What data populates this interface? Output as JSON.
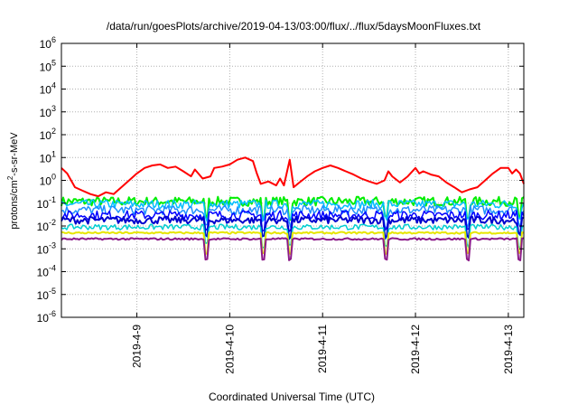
{
  "chart_data": {
    "type": "line",
    "title": "/data/run/goesPlots/archive/2019-04-13/03:00/flux/../flux/5daysMoonFluxes.txt",
    "xlabel": "Coordinated Universal Time (UTC)",
    "ylabel": {
      "prefix": "protons/cm",
      "sup": "2",
      "suffix": "-s-sr-MeV"
    },
    "yscale": "log",
    "ylim": [
      1e-06,
      1000000.0
    ],
    "y_ticks": [
      {
        "base": "10",
        "exp": "-6",
        "value": 1e-06
      },
      {
        "base": "10",
        "exp": "-5",
        "value": 1e-05
      },
      {
        "base": "10",
        "exp": "-4",
        "value": 0.0001
      },
      {
        "base": "10",
        "exp": "-3",
        "value": 0.001
      },
      {
        "base": "10",
        "exp": "-2",
        "value": 0.01
      },
      {
        "base": "10",
        "exp": "-1",
        "value": 0.1
      },
      {
        "base": "10",
        "exp": "0",
        "value": 1
      },
      {
        "base": "10",
        "exp": "1",
        "value": 10
      },
      {
        "base": "10",
        "exp": "2",
        "value": 100
      },
      {
        "base": "10",
        "exp": "3",
        "value": 1000
      },
      {
        "base": "10",
        "exp": "4",
        "value": 10000
      },
      {
        "base": "10",
        "exp": "5",
        "value": 100000
      },
      {
        "base": "10",
        "exp": "6",
        "value": 1000000
      }
    ],
    "xlim": [
      "2019-04-08 04:30",
      "2019-04-13 04:00"
    ],
    "x_ticks": [
      "2019-4-9",
      "2019-4-10",
      "2019-4-11",
      "2019-4-12",
      "2019-4-13"
    ],
    "grid": true,
    "series": [
      {
        "color": "#ff0000",
        "width": 2,
        "points": [
          [
            "2019-04-08 04:30",
            3.5
          ],
          [
            "2019-04-08 06:00",
            2.0
          ],
          [
            "2019-04-08 08:00",
            0.5
          ],
          [
            "2019-04-08 10:00",
            0.35
          ],
          [
            "2019-04-08 12:00",
            0.25
          ],
          [
            "2019-04-08 14:00",
            0.2
          ],
          [
            "2019-04-08 16:00",
            0.3
          ],
          [
            "2019-04-08 18:00",
            0.25
          ],
          [
            "2019-04-08 20:00",
            0.5
          ],
          [
            "2019-04-08 22:00",
            1.0
          ],
          [
            "2019-04-09 00:00",
            2.0
          ],
          [
            "2019-04-09 02:00",
            3.5
          ],
          [
            "2019-04-09 04:00",
            4.5
          ],
          [
            "2019-04-09 06:00",
            5.0
          ],
          [
            "2019-04-09 08:00",
            3.5
          ],
          [
            "2019-04-09 10:00",
            4.0
          ],
          [
            "2019-04-09 12:00",
            2.5
          ],
          [
            "2019-04-09 14:00",
            1.5
          ],
          [
            "2019-04-09 15:00",
            3.0
          ],
          [
            "2019-04-09 17:00",
            1.2
          ],
          [
            "2019-04-09 19:00",
            1.5
          ],
          [
            "2019-04-09 20:00",
            3.5
          ],
          [
            "2019-04-09 22:00",
            4.0
          ],
          [
            "2019-04-10 00:00",
            5.0
          ],
          [
            "2019-04-10 02:00",
            8.0
          ],
          [
            "2019-04-10 04:00",
            10.0
          ],
          [
            "2019-04-10 06:00",
            7.0
          ],
          [
            "2019-04-10 07:00",
            2.0
          ],
          [
            "2019-04-10 08:00",
            0.7
          ],
          [
            "2019-04-10 10:00",
            0.9
          ],
          [
            "2019-04-10 12:00",
            0.6
          ],
          [
            "2019-04-10 13:00",
            1.2
          ],
          [
            "2019-04-10 14:00",
            0.6
          ],
          [
            "2019-04-10 15:30",
            8.0
          ],
          [
            "2019-04-10 16:30",
            0.5
          ],
          [
            "2019-04-10 18:00",
            0.8
          ],
          [
            "2019-04-10 20:00",
            1.5
          ],
          [
            "2019-04-10 22:00",
            2.5
          ],
          [
            "2019-04-11 00:00",
            3.5
          ],
          [
            "2019-04-11 02:00",
            4.5
          ],
          [
            "2019-04-11 04:00",
            3.5
          ],
          [
            "2019-04-11 06:00",
            2.5
          ],
          [
            "2019-04-11 08:00",
            1.8
          ],
          [
            "2019-04-11 10:00",
            1.2
          ],
          [
            "2019-04-11 12:00",
            0.9
          ],
          [
            "2019-04-11 14:00",
            0.7
          ],
          [
            "2019-04-11 16:00",
            1.0
          ],
          [
            "2019-04-11 17:00",
            2.5
          ],
          [
            "2019-04-11 18:00",
            1.5
          ],
          [
            "2019-04-11 20:00",
            0.8
          ],
          [
            "2019-04-11 22:00",
            1.5
          ],
          [
            "2019-04-12 00:00",
            3.5
          ],
          [
            "2019-04-12 01:00",
            2.0
          ],
          [
            "2019-04-12 02:00",
            2.5
          ],
          [
            "2019-04-12 04:00",
            1.8
          ],
          [
            "2019-04-12 06:00",
            1.5
          ],
          [
            "2019-04-12 08:00",
            0.8
          ],
          [
            "2019-04-12 10:00",
            0.5
          ],
          [
            "2019-04-12 12:00",
            0.3
          ],
          [
            "2019-04-12 14:00",
            0.4
          ],
          [
            "2019-04-12 16:00",
            0.5
          ],
          [
            "2019-04-12 18:00",
            1.0
          ],
          [
            "2019-04-12 20:00",
            2.0
          ],
          [
            "2019-04-12 22:00",
            3.5
          ],
          [
            "2019-04-13 00:00",
            3.5
          ],
          [
            "2019-04-13 01:00",
            2.0
          ],
          [
            "2019-04-13 02:00",
            3.0
          ],
          [
            "2019-04-13 03:00",
            2.0
          ],
          [
            "2019-04-13 04:00",
            0.7
          ]
        ]
      },
      {
        "color": "#00ee00",
        "width": 2,
        "base": 0.12,
        "amp": 0.05,
        "dips": 0.7
      },
      {
        "color": "#00bfff",
        "width": 1.5,
        "base": 0.09,
        "amp": 0.05,
        "dips": 0.6
      },
      {
        "color": "#1e90ff",
        "width": 1.5,
        "base": 0.05,
        "amp": 0.05,
        "dips": 0.6
      },
      {
        "color": "#0000ff",
        "width": 1.5,
        "base": 0.03,
        "amp": 0.05,
        "dips": 0.7
      },
      {
        "color": "#0000cd",
        "width": 2,
        "base": 0.018,
        "amp": 0.04,
        "dips": 0.7
      },
      {
        "color": "#00ced1",
        "width": 1.5,
        "base": 0.009,
        "amp": 0.03,
        "dips": 0.8
      },
      {
        "color": "#e6e600",
        "width": 2,
        "base": 0.005,
        "amp": 0.01,
        "dips": 0.9
      },
      {
        "color": "#8b1a89",
        "width": 2,
        "base": 0.0027,
        "amp": 0.01,
        "dips": 0.9
      }
    ]
  }
}
